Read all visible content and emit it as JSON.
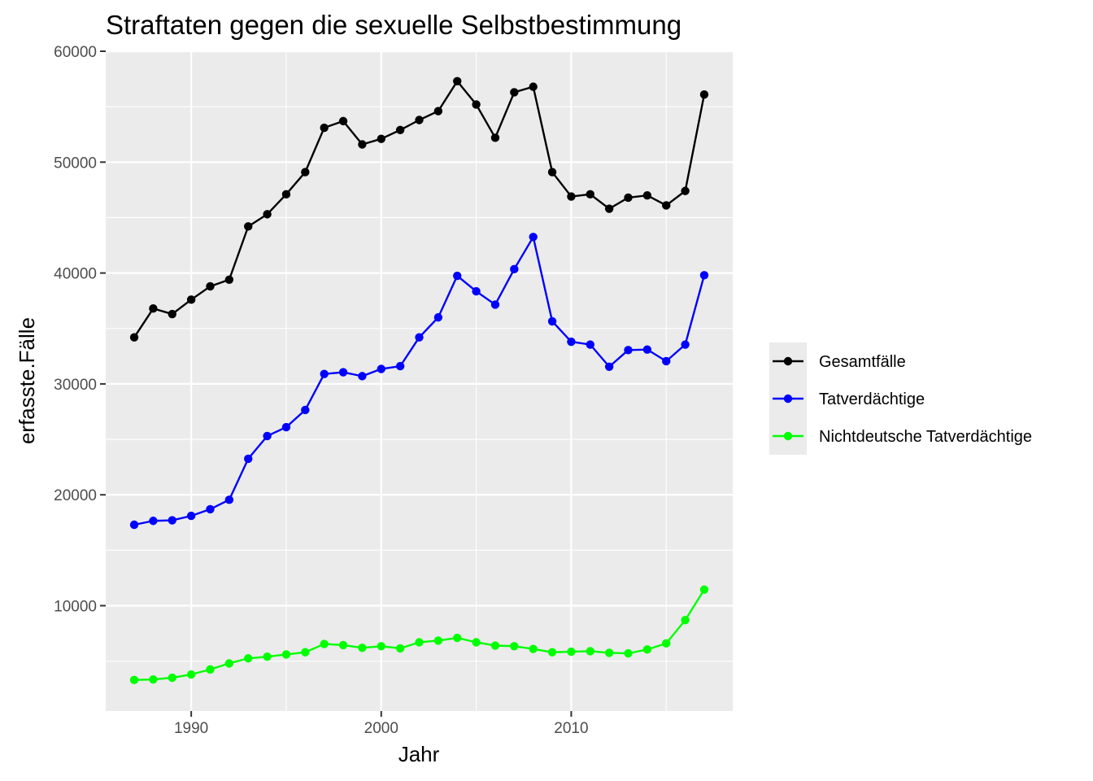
{
  "chart_data": {
    "type": "line",
    "title": "Straftaten gegen die sexuelle Selbstbestimmung",
    "xlabel": "Jahr",
    "ylabel": "erfasste.Fälle",
    "xlim": [
      1985.5,
      2018.5
    ],
    "ylim": [
      500,
      60000
    ],
    "x_ticks": [
      1990,
      2000,
      2010
    ],
    "y_ticks": [
      10000,
      20000,
      30000,
      40000,
      50000,
      60000
    ],
    "grid": true,
    "legend_position": "right",
    "x": [
      1987,
      1988,
      1989,
      1990,
      1991,
      1992,
      1993,
      1994,
      1995,
      1996,
      1997,
      1998,
      1999,
      2000,
      2001,
      2002,
      2003,
      2004,
      2005,
      2006,
      2007,
      2008,
      2009,
      2010,
      2011,
      2012,
      2013,
      2014,
      2015,
      2016,
      2017
    ],
    "series": [
      {
        "name": "Gesamtfälle",
        "color": "#000000",
        "values": [
          34200,
          36800,
          36300,
          37600,
          38800,
          39400,
          44200,
          45300,
          47100,
          49100,
          53100,
          53700,
          51600,
          52100,
          52900,
          53800,
          54600,
          57300,
          55200,
          52200,
          56300,
          56800,
          49100,
          46900,
          47100,
          45800,
          46800,
          47000,
          46100,
          47400,
          56100
        ]
      },
      {
        "name": "Tatverdächtige",
        "color": "#0000ff",
        "values": [
          17300,
          17650,
          17700,
          18100,
          18700,
          19550,
          23250,
          25300,
          26100,
          27650,
          30900,
          31050,
          30700,
          31350,
          31600,
          34200,
          36000,
          39750,
          38350,
          37150,
          40350,
          43250,
          35650,
          33800,
          33550,
          31550,
          33050,
          33100,
          32050,
          33550,
          39800
        ]
      },
      {
        "name": "Nichtdeutsche Tatverdächtige",
        "color": "#00ff00",
        "values": [
          3300,
          3350,
          3500,
          3800,
          4250,
          4800,
          5250,
          5400,
          5600,
          5800,
          6550,
          6450,
          6200,
          6350,
          6150,
          6700,
          6850,
          7100,
          6700,
          6400,
          6350,
          6100,
          5800,
          5850,
          5900,
          5750,
          5700,
          6050,
          6600,
          8700,
          11450
        ]
      }
    ]
  }
}
